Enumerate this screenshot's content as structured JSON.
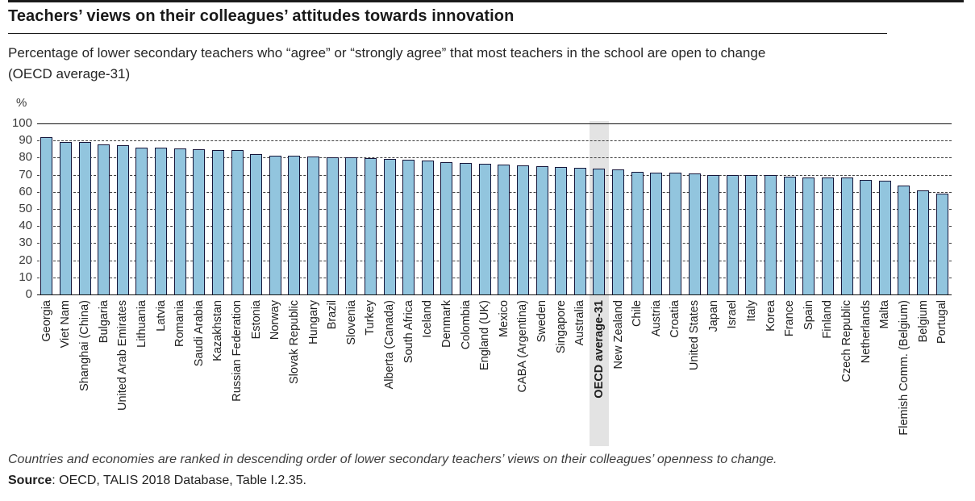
{
  "page": {
    "title": "Teachers’ views on their colleagues’ attitudes towards innovation",
    "subtitle_line1": "Percentage of lower secondary teachers who “agree” or “strongly agree” that most teachers in the school are open to change",
    "subtitle_line2": "(OECD average-31)",
    "footnote": "Countries and economies are ranked in descending order of lower secondary teachers’ views on their colleagues’ openness to change.",
    "source_label": "Source",
    "source_text": ": OECD, TALIS 2018 Database, Table I.2.35."
  },
  "chart_data": {
    "type": "bar",
    "title": "Teachers’ views on their colleagues’ attitudes towards innovation",
    "unit": "%",
    "ylim": [
      0,
      100
    ],
    "yticks": [
      0,
      10,
      20,
      30,
      40,
      50,
      60,
      70,
      80,
      90,
      100
    ],
    "grid": "horizontal dashed, solid at 0 and 100",
    "legend": "none",
    "bar_color": "#92c5de",
    "bar_border_color": "#16163a",
    "highlight_category": "OECD average-31",
    "highlight_band_color": "#e3e3e3",
    "categories": [
      "Georgia",
      "Viet Nam",
      "Shanghai (China)",
      "Bulgaria",
      "United Arab Emirates",
      "Lithuania",
      "Latvia",
      "Romania",
      "Saudi Arabia",
      "Kazakhstan",
      "Russian Federation",
      "Estonia",
      "Norway",
      "Slovak Republic",
      "Hungary",
      "Brazil",
      "Slovenia",
      "Turkey",
      "Alberta (Canada)",
      "South Africa",
      "Iceland",
      "Denmark",
      "Colombia",
      "England (UK)",
      "Mexico",
      "CABA (Argentina)",
      "Sweden",
      "Singapore",
      "Australia",
      "OECD average-31",
      "New Zealand",
      "Chile",
      "Austria",
      "Croatia",
      "United States",
      "Japan",
      "Israel",
      "Italy",
      "Korea",
      "France",
      "Spain",
      "Finland",
      "Czech Republic",
      "Netherlands",
      "Malta",
      "Flemish Comm. (Belgium)",
      "Belgium",
      "Portugal"
    ],
    "values": [
      91.9,
      89.3,
      89.2,
      87.8,
      87.4,
      86.0,
      85.8,
      85.4,
      85.0,
      84.5,
      84.4,
      82.2,
      81.2,
      81.0,
      80.7,
      80.2,
      80.0,
      79.6,
      79.2,
      78.9,
      78.4,
      77.5,
      76.7,
      76.3,
      75.8,
      75.5,
      75.0,
      74.6,
      74.0,
      73.5,
      73.0,
      71.9,
      71.1,
      71.0,
      70.6,
      70.0,
      69.9,
      69.8,
      69.6,
      69.0,
      68.6,
      68.5,
      68.3,
      67.1,
      66.5,
      63.6,
      60.8,
      58.9
    ]
  }
}
